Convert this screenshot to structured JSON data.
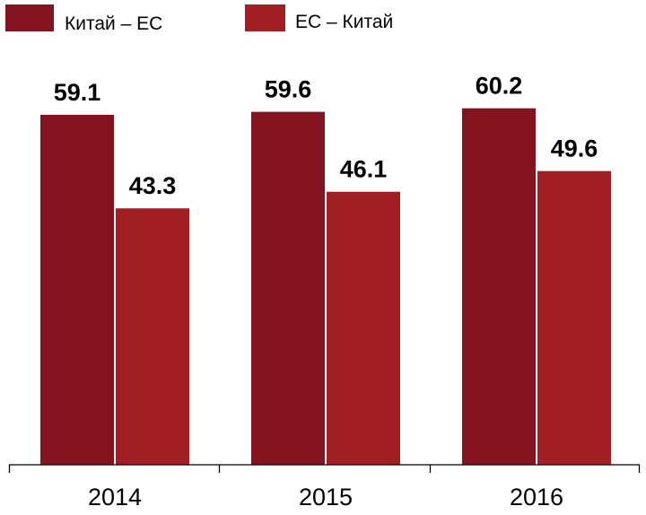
{
  "chart_data": {
    "type": "bar",
    "title": "",
    "xlabel": "",
    "ylabel": "",
    "categories": [
      "2014",
      "2015",
      "2016"
    ],
    "series": [
      {
        "name": "Китай – ЕС",
        "values": [
          59.1,
          59.6,
          60.2
        ],
        "color": "#83141f"
      },
      {
        "name": "ЕС – Китай",
        "values": [
          43.3,
          46.1,
          49.6
        ],
        "color": "#a11f22"
      }
    ],
    "value_labels": [
      [
        "59.1",
        "59.6",
        "60.2"
      ],
      [
        "43.3",
        "46.1",
        "49.6"
      ]
    ],
    "ylim": [
      0,
      66
    ],
    "grid": false,
    "legend_position": "top-left"
  }
}
